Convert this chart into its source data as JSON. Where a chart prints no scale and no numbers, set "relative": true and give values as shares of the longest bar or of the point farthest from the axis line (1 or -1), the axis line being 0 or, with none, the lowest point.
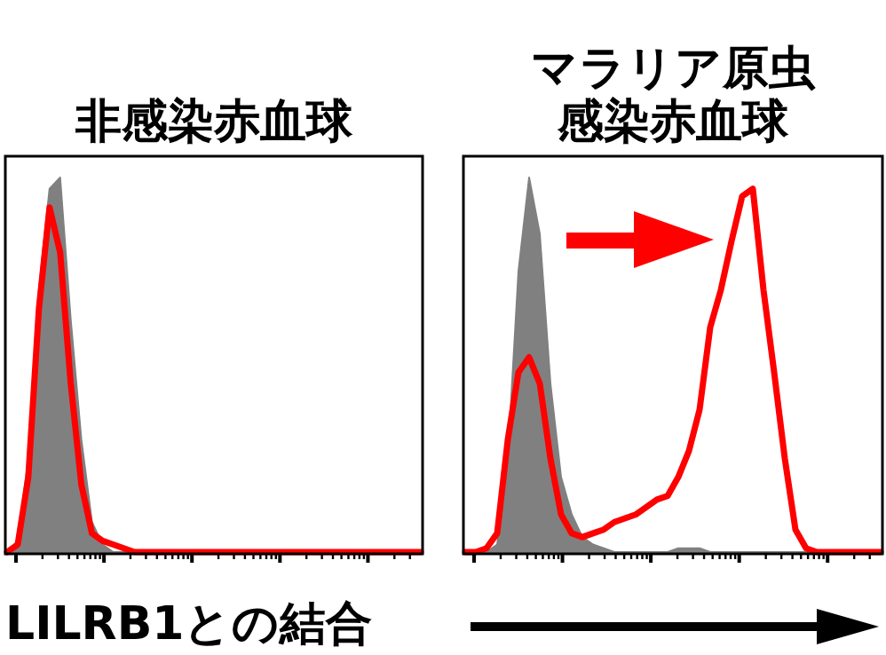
{
  "chart_data": [
    {
      "type": "area",
      "title": "非感染赤血球",
      "xlabel": "LILRB1との結合",
      "relative": true,
      "tick_labels": false,
      "categories": [
        null,
        null,
        null,
        null,
        null,
        null,
        null,
        null,
        null,
        null,
        null,
        null,
        null,
        null,
        null,
        null,
        null,
        null,
        null,
        null,
        null,
        null,
        null,
        null,
        null,
        null,
        null,
        null,
        null,
        null,
        null,
        null,
        null,
        null,
        null,
        null,
        null,
        null,
        null,
        null
      ],
      "series": [
        {
          "color": "#808080",
          "values": [
            0,
            0.03,
            0.25,
            0.7,
            0.97,
            1.0,
            0.62,
            0.3,
            0.08,
            0.02,
            0,
            0,
            0,
            0,
            0,
            0,
            0,
            0,
            0,
            0,
            0,
            0,
            0,
            0,
            0,
            0,
            0,
            0,
            0,
            0,
            0,
            0,
            0,
            0,
            0,
            0,
            0,
            0,
            0,
            0
          ]
        },
        {
          "type": "line",
          "color": "#ff0000",
          "values": [
            0,
            0.02,
            0.2,
            0.65,
            0.92,
            0.8,
            0.45,
            0.18,
            0.05,
            0.03,
            0.02,
            0.01,
            0,
            0,
            0,
            0,
            0,
            0,
            0,
            0,
            0,
            0,
            0,
            0,
            0,
            0,
            0,
            0,
            0,
            0,
            0,
            0,
            0,
            0,
            0,
            0,
            0,
            0,
            0,
            0
          ]
        }
      ]
    },
    {
      "type": "area",
      "title": "マラリア原虫感染赤血球",
      "relative": true,
      "tick_labels": false,
      "categories": [
        null,
        null,
        null,
        null,
        null,
        null,
        null,
        null,
        null,
        null,
        null,
        null,
        null,
        null,
        null,
        null,
        null,
        null,
        null,
        null,
        null,
        null,
        null,
        null,
        null,
        null,
        null,
        null,
        null,
        null,
        null,
        null,
        null,
        null,
        null,
        null,
        null,
        null,
        null,
        null
      ],
      "series": [
        {
          "color": "#808080",
          "values": [
            0,
            0,
            0,
            0.02,
            0.25,
            0.75,
            1.0,
            0.85,
            0.45,
            0.2,
            0.1,
            0.04,
            0.02,
            0.01,
            0,
            0,
            0,
            0,
            0,
            0,
            0.01,
            0.01,
            0.01,
            0,
            0,
            0,
            0,
            0,
            0,
            0,
            0,
            0,
            0,
            0,
            0,
            0,
            0,
            0,
            0,
            0
          ]
        },
        {
          "type": "line",
          "color": "#ff0000",
          "values": [
            0,
            0,
            0.01,
            0.05,
            0.3,
            0.48,
            0.52,
            0.45,
            0.25,
            0.1,
            0.05,
            0.04,
            0.05,
            0.06,
            0.08,
            0.09,
            0.1,
            0.12,
            0.14,
            0.15,
            0.2,
            0.27,
            0.38,
            0.6,
            0.7,
            0.83,
            0.95,
            0.97,
            0.7,
            0.48,
            0.25,
            0.06,
            0.01,
            0,
            0,
            0,
            0,
            0,
            0,
            0
          ]
        }
      ]
    }
  ]
}
